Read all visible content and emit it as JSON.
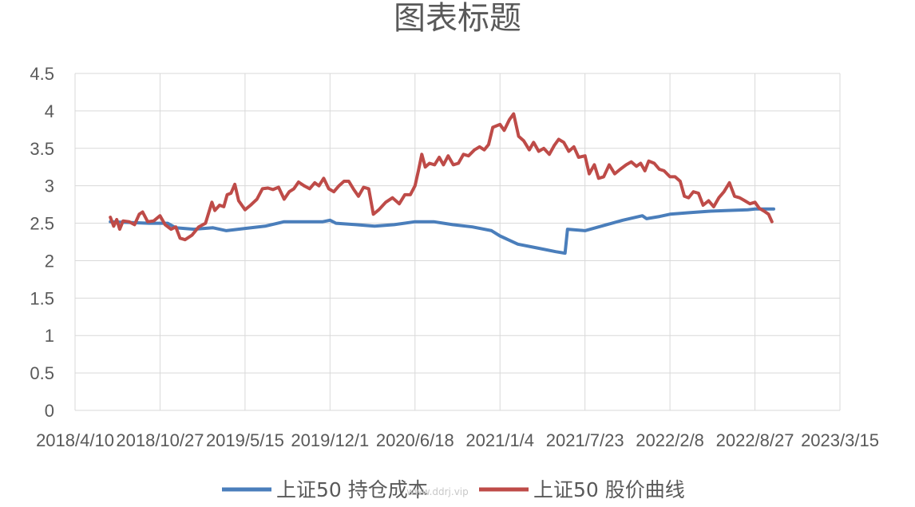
{
  "chart_data": {
    "type": "line",
    "title": "图表标题",
    "xlabel": "",
    "ylabel": "",
    "x_axis": {
      "type": "date",
      "min": "2018-04-10",
      "max": "2023-03-15",
      "tick_labels": [
        "2018/4/10",
        "2018/10/27",
        "2019/5/15",
        "2019/12/1",
        "2020/6/18",
        "2021/1/4",
        "2021/7/23",
        "2022/2/8",
        "2022/8/27",
        "2023/3/15"
      ],
      "tick_dates": [
        "2018-04-10",
        "2018-10-27",
        "2019-05-15",
        "2019-12-01",
        "2020-06-18",
        "2021-01-04",
        "2021-07-23",
        "2022-02-08",
        "2022-08-27",
        "2023-03-15"
      ]
    },
    "y_axis": {
      "ylim": [
        0,
        4.5
      ],
      "tick_labels": [
        "0",
        "0.5",
        "1",
        "1.5",
        "2",
        "2.5",
        "3",
        "3.5",
        "4",
        "4.5"
      ],
      "tick_values": [
        0,
        0.5,
        1,
        1.5,
        2,
        2.5,
        3,
        3.5,
        4,
        4.5
      ]
    },
    "grid": true,
    "legend_position": "bottom",
    "series": [
      {
        "name": "上证50 持仓成本",
        "color": "#4a7ebb",
        "points": [
          [
            "2018-07-02",
            2.52
          ],
          [
            "2018-08-15",
            2.51
          ],
          [
            "2018-10-01",
            2.5
          ],
          [
            "2018-11-14",
            2.5
          ],
          [
            "2018-12-03",
            2.44
          ],
          [
            "2019-01-15",
            2.42
          ],
          [
            "2019-02-28",
            2.44
          ],
          [
            "2019-04-01",
            2.4
          ],
          [
            "2019-05-15",
            2.43
          ],
          [
            "2019-07-01",
            2.46
          ],
          [
            "2019-08-15",
            2.52
          ],
          [
            "2019-10-01",
            2.52
          ],
          [
            "2019-11-14",
            2.52
          ],
          [
            "2019-12-01",
            2.54
          ],
          [
            "2019-12-15",
            2.5
          ],
          [
            "2020-01-31",
            2.48
          ],
          [
            "2020-03-15",
            2.46
          ],
          [
            "2020-04-30",
            2.48
          ],
          [
            "2020-06-18",
            2.52
          ],
          [
            "2020-08-01",
            2.52
          ],
          [
            "2020-09-15",
            2.48
          ],
          [
            "2020-10-31",
            2.45
          ],
          [
            "2020-12-15",
            2.4
          ],
          [
            "2021-01-04",
            2.33
          ],
          [
            "2021-02-15",
            2.22
          ],
          [
            "2021-04-01",
            2.17
          ],
          [
            "2021-05-15",
            2.12
          ],
          [
            "2021-06-06",
            2.1
          ],
          [
            "2021-06-12",
            2.42
          ],
          [
            "2021-07-23",
            2.4
          ],
          [
            "2021-09-05",
            2.47
          ],
          [
            "2021-10-20",
            2.54
          ],
          [
            "2021-12-05",
            2.6
          ],
          [
            "2021-12-15",
            2.56
          ],
          [
            "2022-01-15",
            2.59
          ],
          [
            "2022-02-08",
            2.62
          ],
          [
            "2022-03-25",
            2.64
          ],
          [
            "2022-05-10",
            2.66
          ],
          [
            "2022-06-25",
            2.67
          ],
          [
            "2022-08-10",
            2.68
          ],
          [
            "2022-08-27",
            2.69
          ],
          [
            "2022-10-10",
            2.69
          ]
        ]
      },
      {
        "name": "上证50 股价曲线",
        "color": "#be4b48",
        "points": [
          [
            "2018-07-02",
            2.58
          ],
          [
            "2018-07-10",
            2.46
          ],
          [
            "2018-07-17",
            2.55
          ],
          [
            "2018-07-24",
            2.42
          ],
          [
            "2018-08-01",
            2.53
          ],
          [
            "2018-08-15",
            2.52
          ],
          [
            "2018-08-28",
            2.48
          ],
          [
            "2018-09-08",
            2.62
          ],
          [
            "2018-09-16",
            2.65
          ],
          [
            "2018-09-28",
            2.52
          ],
          [
            "2018-10-12",
            2.53
          ],
          [
            "2018-10-27",
            2.6
          ],
          [
            "2018-11-08",
            2.48
          ],
          [
            "2018-11-22",
            2.42
          ],
          [
            "2018-12-03",
            2.45
          ],
          [
            "2018-12-13",
            2.3
          ],
          [
            "2018-12-25",
            2.28
          ],
          [
            "2019-01-10",
            2.34
          ],
          [
            "2019-01-26",
            2.45
          ],
          [
            "2019-02-11",
            2.5
          ],
          [
            "2019-02-26",
            2.78
          ],
          [
            "2019-03-05",
            2.67
          ],
          [
            "2019-03-16",
            2.74
          ],
          [
            "2019-03-26",
            2.72
          ],
          [
            "2019-04-03",
            2.88
          ],
          [
            "2019-04-12",
            2.9
          ],
          [
            "2019-04-21",
            3.02
          ],
          [
            "2019-04-30",
            2.8
          ],
          [
            "2019-05-15",
            2.68
          ],
          [
            "2019-05-28",
            2.74
          ],
          [
            "2019-06-12",
            2.82
          ],
          [
            "2019-06-25",
            2.96
          ],
          [
            "2019-07-08",
            2.97
          ],
          [
            "2019-07-20",
            2.95
          ],
          [
            "2019-08-02",
            2.98
          ],
          [
            "2019-08-15",
            2.82
          ],
          [
            "2019-08-27",
            2.92
          ],
          [
            "2019-09-07",
            2.96
          ],
          [
            "2019-09-18",
            3.05
          ],
          [
            "2019-10-01",
            3.0
          ],
          [
            "2019-10-14",
            2.96
          ],
          [
            "2019-10-26",
            3.04
          ],
          [
            "2019-11-05",
            3.0
          ],
          [
            "2019-11-16",
            3.1
          ],
          [
            "2019-11-28",
            2.96
          ],
          [
            "2019-12-10",
            2.92
          ],
          [
            "2019-12-22",
            3.0
          ],
          [
            "2020-01-03",
            3.06
          ],
          [
            "2020-01-14",
            3.06
          ],
          [
            "2020-01-26",
            2.95
          ],
          [
            "2020-02-06",
            2.86
          ],
          [
            "2020-02-18",
            2.98
          ],
          [
            "2020-03-01",
            2.96
          ],
          [
            "2020-03-12",
            2.62
          ],
          [
            "2020-03-25",
            2.68
          ],
          [
            "2020-04-10",
            2.78
          ],
          [
            "2020-04-26",
            2.84
          ],
          [
            "2020-05-12",
            2.76
          ],
          [
            "2020-05-25",
            2.88
          ],
          [
            "2020-06-07",
            2.88
          ],
          [
            "2020-06-18",
            3.0
          ],
          [
            "2020-06-26",
            3.2
          ],
          [
            "2020-07-04",
            3.42
          ],
          [
            "2020-07-12",
            3.25
          ],
          [
            "2020-07-22",
            3.3
          ],
          [
            "2020-08-03",
            3.28
          ],
          [
            "2020-08-14",
            3.38
          ],
          [
            "2020-08-24",
            3.28
          ],
          [
            "2020-09-04",
            3.4
          ],
          [
            "2020-09-16",
            3.28
          ],
          [
            "2020-09-28",
            3.3
          ],
          [
            "2020-10-10",
            3.42
          ],
          [
            "2020-10-22",
            3.4
          ],
          [
            "2020-11-05",
            3.48
          ],
          [
            "2020-11-17",
            3.52
          ],
          [
            "2020-11-28",
            3.48
          ],
          [
            "2020-12-08",
            3.55
          ],
          [
            "2020-12-18",
            3.78
          ],
          [
            "2021-01-04",
            3.82
          ],
          [
            "2021-01-14",
            3.74
          ],
          [
            "2021-01-26",
            3.88
          ],
          [
            "2021-02-05",
            3.96
          ],
          [
            "2021-02-17",
            3.66
          ],
          [
            "2021-03-01",
            3.6
          ],
          [
            "2021-03-14",
            3.48
          ],
          [
            "2021-03-24",
            3.58
          ],
          [
            "2021-04-05",
            3.46
          ],
          [
            "2021-04-17",
            3.5
          ],
          [
            "2021-04-30",
            3.42
          ],
          [
            "2021-05-12",
            3.54
          ],
          [
            "2021-05-22",
            3.62
          ],
          [
            "2021-06-03",
            3.58
          ],
          [
            "2021-06-15",
            3.46
          ],
          [
            "2021-06-27",
            3.52
          ],
          [
            "2021-07-08",
            3.38
          ],
          [
            "2021-07-23",
            3.4
          ],
          [
            "2021-08-02",
            3.16
          ],
          [
            "2021-08-14",
            3.28
          ],
          [
            "2021-08-24",
            3.1
          ],
          [
            "2021-09-05",
            3.12
          ],
          [
            "2021-09-18",
            3.28
          ],
          [
            "2021-10-01",
            3.16
          ],
          [
            "2021-10-14",
            3.22
          ],
          [
            "2021-10-28",
            3.28
          ],
          [
            "2021-11-09",
            3.32
          ],
          [
            "2021-11-21",
            3.26
          ],
          [
            "2021-12-01",
            3.3
          ],
          [
            "2021-12-11",
            3.2
          ],
          [
            "2021-12-20",
            3.33
          ],
          [
            "2022-01-02",
            3.3
          ],
          [
            "2022-01-14",
            3.22
          ],
          [
            "2022-01-25",
            3.2
          ],
          [
            "2022-02-08",
            3.12
          ],
          [
            "2022-02-20",
            3.12
          ],
          [
            "2022-03-04",
            3.06
          ],
          [
            "2022-03-14",
            2.86
          ],
          [
            "2022-03-24",
            2.84
          ],
          [
            "2022-04-04",
            2.92
          ],
          [
            "2022-04-16",
            2.9
          ],
          [
            "2022-04-27",
            2.74
          ],
          [
            "2022-05-10",
            2.8
          ],
          [
            "2022-05-22",
            2.72
          ],
          [
            "2022-06-03",
            2.84
          ],
          [
            "2022-06-15",
            2.92
          ],
          [
            "2022-06-28",
            3.04
          ],
          [
            "2022-07-10",
            2.86
          ],
          [
            "2022-07-22",
            2.84
          ],
          [
            "2022-08-03",
            2.8
          ],
          [
            "2022-08-15",
            2.76
          ],
          [
            "2022-08-27",
            2.78
          ],
          [
            "2022-09-06",
            2.7
          ],
          [
            "2022-09-18",
            2.66
          ],
          [
            "2022-09-28",
            2.62
          ],
          [
            "2022-10-06",
            2.52
          ]
        ]
      }
    ]
  },
  "watermark": "www.ddrj.vip"
}
